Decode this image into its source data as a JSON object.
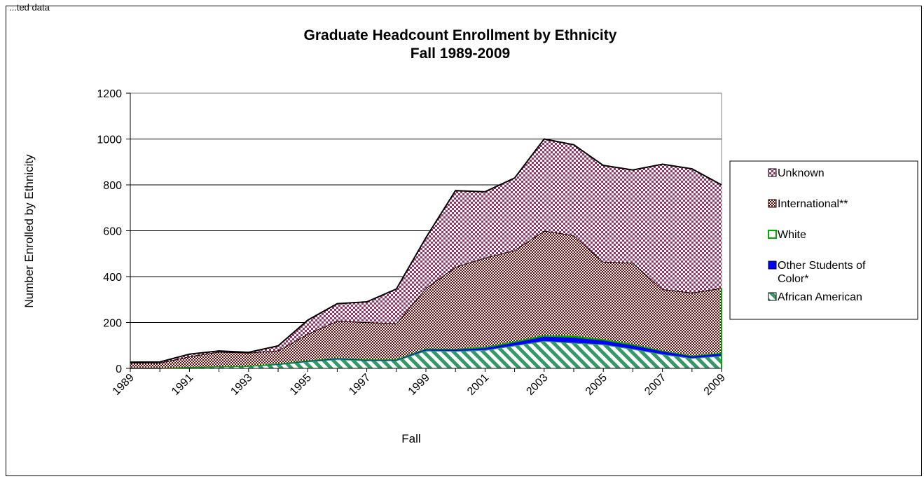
{
  "corner_text": "...ted data",
  "chart_data": {
    "type": "area",
    "stacked": true,
    "title": [
      "Graduate Headcount Enrollment by Ethnicity",
      "Fall 1989-2009"
    ],
    "xlabel": "Fall",
    "ylabel": "Number Enrolled by Ethnicity",
    "ylim": [
      0,
      1200
    ],
    "yticks": [
      "0",
      "200",
      "400",
      "600",
      "800",
      "1000",
      "1200"
    ],
    "x": [
      1989,
      1990,
      1991,
      1992,
      1993,
      1994,
      1995,
      1996,
      1997,
      1998,
      1999,
      2000,
      2001,
      2002,
      2003,
      2004,
      2005,
      2006,
      2007,
      2008,
      2009
    ],
    "xtick_labels": [
      "1989",
      "1991",
      "1993",
      "1995",
      "1997",
      "1999",
      "2001",
      "2003",
      "2005",
      "2007",
      "2009"
    ],
    "grid": true,
    "legend_position": "right",
    "series": [
      {
        "name": "African American",
        "color": "#339966",
        "pattern": "diagonal-stripes",
        "values": [
          2,
          2,
          5,
          8,
          10,
          18,
          30,
          40,
          35,
          35,
          78,
          76,
          80,
          100,
          120,
          112,
          105,
          85,
          62,
          45,
          55
        ]
      },
      {
        "name": "Other Students of Color*",
        "color": "#0000ff",
        "pattern": "solid",
        "values": [
          0,
          0,
          1,
          1,
          1,
          2,
          3,
          4,
          3,
          3,
          5,
          6,
          8,
          12,
          18,
          22,
          16,
          15,
          12,
          8,
          10
        ]
      },
      {
        "name": "White",
        "color": "#00aa00",
        "pattern": "solid",
        "values": [
          0,
          0,
          0,
          0,
          0,
          1,
          2,
          2,
          2,
          2,
          4,
          4,
          6,
          6,
          7,
          8,
          7,
          6,
          4,
          3,
          3
        ]
      },
      {
        "name": "International**",
        "color": "#800000",
        "pattern": "checker",
        "values": [
          22,
          22,
          46,
          63,
          57,
          57,
          115,
          161,
          161,
          156,
          263,
          356,
          388,
          397,
          455,
          438,
          337,
          354,
          267,
          274,
          282
        ]
      },
      {
        "name": "Unknown",
        "color": "#993366",
        "pattern": "checker",
        "values": [
          3,
          4,
          10,
          4,
          2,
          20,
          60,
          75,
          89,
          150,
          220,
          333,
          288,
          315,
          400,
          395,
          420,
          405,
          545,
          540,
          450
        ]
      }
    ]
  }
}
